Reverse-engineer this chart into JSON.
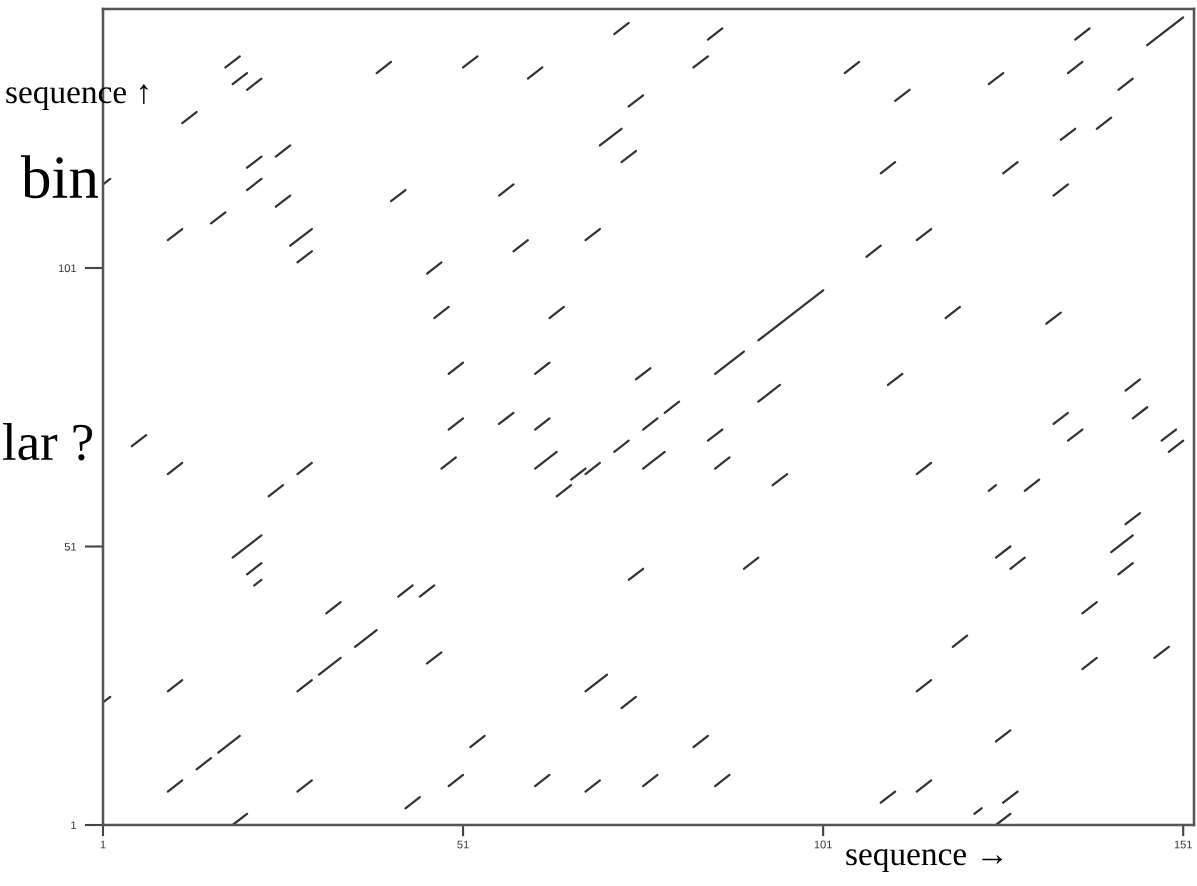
{
  "chart_data": {
    "type": "line",
    "color": "#333333",
    "series": [
      {
        "x": [
          18,
          20
        ],
        "values": [
          137,
          139
        ]
      },
      {
        "x": [
          19,
          21
        ],
        "values": [
          134,
          136
        ]
      },
      {
        "x": [
          21,
          23
        ],
        "values": [
          133,
          135
        ]
      },
      {
        "x": [
          39,
          41
        ],
        "values": [
          136,
          138
        ]
      },
      {
        "x": [
          51,
          53
        ],
        "values": [
          137,
          139
        ]
      },
      {
        "x": [
          60,
          62
        ],
        "values": [
          135,
          137
        ]
      },
      {
        "x": [
          72,
          74
        ],
        "values": [
          143,
          145
        ]
      },
      {
        "x": [
          85,
          87
        ],
        "values": [
          142,
          144
        ]
      },
      {
        "x": [
          83,
          85
        ],
        "values": [
          137,
          139
        ]
      },
      {
        "x": [
          74,
          76
        ],
        "values": [
          130,
          132
        ]
      },
      {
        "x": [
          70,
          73
        ],
        "values": [
          123,
          126
        ]
      },
      {
        "x": [
          73,
          75
        ],
        "values": [
          120,
          122
        ]
      },
      {
        "x": [
          56,
          58
        ],
        "values": [
          114,
          116
        ]
      },
      {
        "x": [
          41,
          43
        ],
        "values": [
          113,
          115
        ]
      },
      {
        "x": [
          25,
          27
        ],
        "values": [
          121,
          123
        ]
      },
      {
        "x": [
          21,
          23
        ],
        "values": [
          119,
          121
        ]
      },
      {
        "x": [
          21,
          23
        ],
        "values": [
          115,
          117
        ]
      },
      {
        "x": [
          25,
          27
        ],
        "values": [
          112,
          114
        ]
      },
      {
        "x": [
          16,
          18
        ],
        "values": [
          109,
          111
        ]
      },
      {
        "x": [
          10,
          12
        ],
        "values": [
          106,
          108
        ]
      },
      {
        "x": [
          27,
          30
        ],
        "values": [
          105,
          108
        ]
      },
      {
        "x": [
          28,
          30
        ],
        "values": [
          102,
          104
        ]
      },
      {
        "x": [
          58,
          60
        ],
        "values": [
          104,
          106
        ]
      },
      {
        "x": [
          68,
          70
        ],
        "values": [
          106,
          108
        ]
      },
      {
        "x": [
          12,
          14
        ],
        "values": [
          127,
          129
        ]
      },
      {
        "x": [
          1,
          2
        ],
        "values": [
          116,
          117
        ]
      },
      {
        "x": [
          46,
          48
        ],
        "values": [
          100,
          102
        ]
      },
      {
        "x": [
          47,
          49
        ],
        "values": [
          92,
          94
        ]
      },
      {
        "x": [
          49,
          51
        ],
        "values": [
          82,
          84
        ]
      },
      {
        "x": [
          63,
          65
        ],
        "values": [
          92,
          94
        ]
      },
      {
        "x": [
          61,
          63
        ],
        "values": [
          82,
          84
        ]
      },
      {
        "x": [
          92,
          101
        ],
        "values": [
          88,
          97
        ]
      },
      {
        "x": [
          86,
          90
        ],
        "values": [
          82,
          86
        ]
      },
      {
        "x": [
          75,
          77
        ],
        "values": [
          81,
          83
        ]
      },
      {
        "x": [
          92,
          95
        ],
        "values": [
          77,
          80
        ]
      },
      {
        "x": [
          79,
          81
        ],
        "values": [
          75,
          77
        ]
      },
      {
        "x": [
          56,
          58
        ],
        "values": [
          73,
          75
        ]
      },
      {
        "x": [
          61,
          63
        ],
        "values": [
          72,
          74
        ]
      },
      {
        "x": [
          76,
          78
        ],
        "values": [
          72,
          74
        ]
      },
      {
        "x": [
          85,
          87
        ],
        "values": [
          70,
          72
        ]
      },
      {
        "x": [
          72,
          74
        ],
        "values": [
          68,
          70
        ]
      },
      {
        "x": [
          61,
          64
        ],
        "values": [
          65,
          68
        ]
      },
      {
        "x": [
          76,
          79
        ],
        "values": [
          65,
          68
        ]
      },
      {
        "x": [
          86,
          88
        ],
        "values": [
          65,
          67
        ]
      },
      {
        "x": [
          66,
          68
        ],
        "values": [
          63,
          65
        ]
      },
      {
        "x": [
          68,
          70
        ],
        "values": [
          64,
          66
        ]
      },
      {
        "x": [
          64,
          66
        ],
        "values": [
          60,
          62
        ]
      },
      {
        "x": [
          94,
          96
        ],
        "values": [
          62,
          64
        ]
      },
      {
        "x": [
          74,
          76
        ],
        "values": [
          45,
          47
        ]
      },
      {
        "x": [
          90,
          92
        ],
        "values": [
          47,
          49
        ]
      },
      {
        "x": [
          68,
          71
        ],
        "values": [
          25,
          28
        ]
      },
      {
        "x": [
          73,
          75
        ],
        "values": [
          22,
          24
        ]
      },
      {
        "x": [
          52,
          54
        ],
        "values": [
          15,
          17
        ]
      },
      {
        "x": [
          83,
          85
        ],
        "values": [
          15,
          17
        ]
      },
      {
        "x": [
          61,
          63
        ],
        "values": [
          8,
          10
        ]
      },
      {
        "x": [
          68,
          70
        ],
        "values": [
          7,
          9
        ]
      },
      {
        "x": [
          76,
          78
        ],
        "values": [
          8,
          10
        ]
      },
      {
        "x": [
          86,
          88
        ],
        "values": [
          8,
          10
        ]
      },
      {
        "x": [
          104,
          106
        ],
        "values": [
          136,
          138
        ]
      },
      {
        "x": [
          111,
          113
        ],
        "values": [
          131,
          133
        ]
      },
      {
        "x": [
          136,
          138
        ],
        "values": [
          142,
          144
        ]
      },
      {
        "x": [
          146,
          151
        ],
        "values": [
          141,
          146
        ]
      },
      {
        "x": [
          135,
          137
        ],
        "values": [
          136,
          138
        ]
      },
      {
        "x": [
          124,
          126
        ],
        "values": [
          134,
          136
        ]
      },
      {
        "x": [
          142,
          144
        ],
        "values": [
          133,
          135
        ]
      },
      {
        "x": [
          134,
          136
        ],
        "values": [
          124,
          126
        ]
      },
      {
        "x": [
          139,
          141
        ],
        "values": [
          126,
          128
        ]
      },
      {
        "x": [
          109,
          111
        ],
        "values": [
          118,
          120
        ]
      },
      {
        "x": [
          126,
          128
        ],
        "values": [
          118,
          120
        ]
      },
      {
        "x": [
          133,
          135
        ],
        "values": [
          114,
          116
        ]
      },
      {
        "x": [
          114,
          116
        ],
        "values": [
          106,
          108
        ]
      },
      {
        "x": [
          107,
          109
        ],
        "values": [
          103,
          105
        ]
      },
      {
        "x": [
          118,
          120
        ],
        "values": [
          92,
          94
        ]
      },
      {
        "x": [
          132,
          134
        ],
        "values": [
          91,
          93
        ]
      },
      {
        "x": [
          110,
          112
        ],
        "values": [
          80,
          82
        ]
      },
      {
        "x": [
          143,
          145
        ],
        "values": [
          79,
          81
        ]
      },
      {
        "x": [
          133,
          135
        ],
        "values": [
          73,
          75
        ]
      },
      {
        "x": [
          144,
          146
        ],
        "values": [
          74,
          76
        ]
      },
      {
        "x": [
          135,
          137
        ],
        "values": [
          70,
          72
        ]
      },
      {
        "x": [
          148,
          150
        ],
        "values": [
          70,
          72
        ]
      },
      {
        "x": [
          149,
          151
        ],
        "values": [
          68,
          70
        ]
      },
      {
        "x": [
          114,
          116
        ],
        "values": [
          64,
          66
        ]
      },
      {
        "x": [
          124,
          125
        ],
        "values": [
          61,
          62
        ]
      },
      {
        "x": [
          129,
          131
        ],
        "values": [
          61,
          63
        ]
      },
      {
        "x": [
          143,
          145
        ],
        "values": [
          55,
          57
        ]
      },
      {
        "x": [
          141,
          144
        ],
        "values": [
          50,
          53
        ]
      },
      {
        "x": [
          142,
          144
        ],
        "values": [
          46,
          48
        ]
      },
      {
        "x": [
          125,
          127
        ],
        "values": [
          49,
          51
        ]
      },
      {
        "x": [
          127,
          129
        ],
        "values": [
          47,
          49
        ]
      },
      {
        "x": [
          137,
          139
        ],
        "values": [
          39,
          41
        ]
      },
      {
        "x": [
          119,
          121
        ],
        "values": [
          33,
          35
        ]
      },
      {
        "x": [
          147,
          149
        ],
        "values": [
          31,
          33
        ]
      },
      {
        "x": [
          137,
          139
        ],
        "values": [
          29,
          31
        ]
      },
      {
        "x": [
          114,
          116
        ],
        "values": [
          25,
          27
        ]
      },
      {
        "x": [
          125,
          127
        ],
        "values": [
          16,
          18
        ]
      },
      {
        "x": [
          114,
          116
        ],
        "values": [
          7,
          9
        ]
      },
      {
        "x": [
          109,
          111
        ],
        "values": [
          5,
          7
        ]
      },
      {
        "x": [
          126,
          128
        ],
        "values": [
          5,
          7
        ]
      },
      {
        "x": [
          122,
          123
        ],
        "values": [
          3,
          4
        ]
      },
      {
        "x": [
          125,
          127
        ],
        "values": [
          1,
          3
        ]
      },
      {
        "x": [
          49,
          51
        ],
        "values": [
          72,
          74
        ]
      },
      {
        "x": [
          5,
          7
        ],
        "values": [
          69,
          71
        ]
      },
      {
        "x": [
          10,
          12
        ],
        "values": [
          64,
          66
        ]
      },
      {
        "x": [
          28,
          30
        ],
        "values": [
          64,
          66
        ]
      },
      {
        "x": [
          48,
          50
        ],
        "values": [
          65,
          67
        ]
      },
      {
        "x": [
          24,
          26
        ],
        "values": [
          60,
          62
        ]
      },
      {
        "x": [
          19,
          23
        ],
        "values": [
          49,
          53
        ]
      },
      {
        "x": [
          21,
          23
        ],
        "values": [
          46,
          48
        ]
      },
      {
        "x": [
          22,
          23
        ],
        "values": [
          44,
          45
        ]
      },
      {
        "x": [
          32,
          34
        ],
        "values": [
          39,
          41
        ]
      },
      {
        "x": [
          42,
          44
        ],
        "values": [
          42,
          44
        ]
      },
      {
        "x": [
          45,
          47
        ],
        "values": [
          42,
          44
        ]
      },
      {
        "x": [
          36,
          39
        ],
        "values": [
          33,
          36
        ]
      },
      {
        "x": [
          31,
          34
        ],
        "values": [
          28,
          31
        ]
      },
      {
        "x": [
          46,
          48
        ],
        "values": [
          30,
          32
        ]
      },
      {
        "x": [
          10,
          12
        ],
        "values": [
          25,
          27
        ]
      },
      {
        "x": [
          28,
          30
        ],
        "values": [
          25,
          27
        ]
      },
      {
        "x": [
          1,
          2
        ],
        "values": [
          23,
          24
        ]
      },
      {
        "x": [
          17,
          20
        ],
        "values": [
          14,
          17
        ]
      },
      {
        "x": [
          14,
          16
        ],
        "values": [
          11,
          13
        ]
      },
      {
        "x": [
          10,
          12
        ],
        "values": [
          7,
          9
        ]
      },
      {
        "x": [
          28,
          30
        ],
        "values": [
          7,
          9
        ]
      },
      {
        "x": [
          49,
          51
        ],
        "values": [
          8,
          10
        ]
      },
      {
        "x": [
          19,
          21
        ],
        "values": [
          1,
          3
        ]
      },
      {
        "x": [
          43,
          45
        ],
        "values": [
          4,
          6
        ]
      }
    ],
    "xlim": [
      1,
      152.5
    ],
    "ylim": [
      1,
      147.5
    ],
    "xticks": [
      1,
      51,
      101,
      151
    ],
    "yticks": [
      1,
      51,
      101
    ],
    "line_style": "solid",
    "annotations": [
      "sequence ↑",
      "bin",
      "lar ?",
      "sequence →"
    ]
  }
}
